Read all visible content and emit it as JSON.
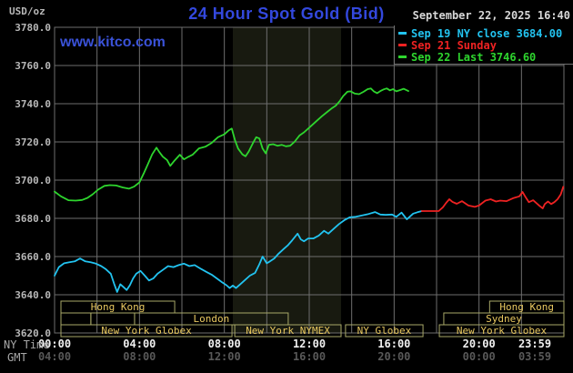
{
  "header": {
    "unit_label": "USD/oz",
    "title": "24 Hour Spot Gold (Bid)",
    "datetime": "September 22, 2025 16:40",
    "watermark": "www.kitco.com"
  },
  "colors": {
    "background": "#000000",
    "title_blue": "#3348dd",
    "grid": "#6e6e6e",
    "nymex_band": "#181a10",
    "session_border": "#a8a868",
    "session_text": "#e8c860",
    "sep19": "#22c3f0",
    "sep21": "#ee2222",
    "sep22": "#2ed52e"
  },
  "legend": {
    "items": [
      {
        "label": "Sep 19 NY close 3684.00",
        "color": "#22c3f0"
      },
      {
        "label": "Sep 21 Sunday",
        "color": "#ee2222"
      },
      {
        "label": "Sep 22 Last 3746.60",
        "color": "#2ed52e"
      }
    ]
  },
  "x_axis": {
    "row1_label": "NY Time",
    "row2_label": "GMT",
    "ticks": [
      {
        "h": 0,
        "ny": "00:00",
        "gmt": "04:00"
      },
      {
        "h": 4,
        "ny": "04:00",
        "gmt": "08:00"
      },
      {
        "h": 8,
        "ny": "08:00",
        "gmt": "12:00"
      },
      {
        "h": 12,
        "ny": "12:00",
        "gmt": "16:00"
      },
      {
        "h": 16,
        "ny": "16:00",
        "gmt": "20:00"
      },
      {
        "h": 20,
        "ny": "20:00",
        "gmt": "00:00"
      },
      {
        "h": 23.983,
        "ny": "23:59",
        "gmt": "03:59",
        "align_x": 588
      }
    ],
    "grid_hours": [
      2,
      4,
      6,
      8,
      10,
      12,
      14,
      16,
      18,
      20,
      22
    ]
  },
  "y_axis": {
    "min": 3620,
    "max": 3780,
    "step": 20,
    "tick_values": [
      3780,
      3760,
      3740,
      3720,
      3700,
      3680,
      3660,
      3640,
      3620
    ],
    "tick_labels": [
      "3780.0",
      "3760.0",
      "3740.0",
      "3720.0",
      "3700.0",
      "3680.0",
      "3660.0",
      "3640.0",
      "3620.0"
    ]
  },
  "sessions": {
    "rows": [
      {
        "row": 1,
        "boxes": [
          {
            "x1h": 0.3,
            "x2h": 5.66,
            "label": "Hong Kong"
          },
          {
            "x1h": 20.5,
            "x2h": 24.0,
            "label": "Hong Kong"
          }
        ]
      },
      {
        "row": 2,
        "boxes": [
          {
            "x1h": 0.3,
            "x2h": 1.71,
            "label": ""
          },
          {
            "x1h": 1.71,
            "x2h": 3.77,
            "label": ""
          },
          {
            "x1h": 3.77,
            "x2h": 11.01,
            "label": "London"
          },
          {
            "x1h": 18.34,
            "x2h": 24.0,
            "label": "Sydney"
          }
        ]
      },
      {
        "row": 3,
        "boxes": [
          {
            "x1h": 0.3,
            "x2h": 8.36,
            "label": "New York Globex"
          },
          {
            "x1h": 8.49,
            "x2h": 13.5,
            "label": "New York NYMEX"
          },
          {
            "x1h": 13.71,
            "x2h": 17.36,
            "label": "NY Globex"
          },
          {
            "x1h": 18.13,
            "x2h": 24.0,
            "label": "New York Globex"
          }
        ]
      }
    ]
  },
  "chart_data": {
    "type": "line",
    "title": "24 Hour Spot Gold (Bid)",
    "xlabel": "NY Time (hours)",
    "ylabel": "USD/oz",
    "xlim": [
      0,
      24
    ],
    "ylim": [
      3620,
      3780
    ],
    "grid": true,
    "legend_position": "top-right",
    "highlight_band_hours": [
      8.4,
      13.5
    ],
    "series": [
      {
        "name": "Sep 19 NY close 3684.00",
        "color": "#22c3f0",
        "points": [
          [
            0.0,
            3650
          ],
          [
            0.2,
            3654.5
          ],
          [
            0.45,
            3656.5
          ],
          [
            0.7,
            3657
          ],
          [
            0.95,
            3657.5
          ],
          [
            1.2,
            3659
          ],
          [
            1.45,
            3657.5
          ],
          [
            1.7,
            3657
          ],
          [
            1.95,
            3656.3
          ],
          [
            2.2,
            3655
          ],
          [
            2.4,
            3653.5
          ],
          [
            2.65,
            3651
          ],
          [
            2.8,
            3646
          ],
          [
            2.95,
            3641.5
          ],
          [
            3.1,
            3645.5
          ],
          [
            3.25,
            3644
          ],
          [
            3.4,
            3642.5
          ],
          [
            3.55,
            3645
          ],
          [
            3.7,
            3648.5
          ],
          [
            3.85,
            3651
          ],
          [
            4.05,
            3652.5
          ],
          [
            4.25,
            3650
          ],
          [
            4.45,
            3647.5
          ],
          [
            4.65,
            3648.5
          ],
          [
            4.85,
            3651
          ],
          [
            5.1,
            3653
          ],
          [
            5.35,
            3655
          ],
          [
            5.6,
            3654.5
          ],
          [
            5.85,
            3655.5
          ],
          [
            6.1,
            3656.3
          ],
          [
            6.35,
            3655
          ],
          [
            6.6,
            3655.5
          ],
          [
            6.9,
            3653.5
          ],
          [
            7.15,
            3652
          ],
          [
            7.4,
            3650.5
          ],
          [
            7.65,
            3648.5
          ],
          [
            7.9,
            3646.5
          ],
          [
            8.1,
            3645
          ],
          [
            8.25,
            3643.5
          ],
          [
            8.4,
            3644.8
          ],
          [
            8.55,
            3643.5
          ],
          [
            8.75,
            3645.5
          ],
          [
            8.95,
            3647.5
          ],
          [
            9.2,
            3650
          ],
          [
            9.45,
            3651.5
          ],
          [
            9.65,
            3656
          ],
          [
            9.8,
            3660
          ],
          [
            10.0,
            3656.5
          ],
          [
            10.15,
            3657.5
          ],
          [
            10.35,
            3659
          ],
          [
            10.55,
            3661.5
          ],
          [
            10.8,
            3664
          ],
          [
            11.0,
            3666
          ],
          [
            11.2,
            3668.5
          ],
          [
            11.45,
            3672
          ],
          [
            11.6,
            3669
          ],
          [
            11.75,
            3668
          ],
          [
            11.95,
            3669.5
          ],
          [
            12.2,
            3669.5
          ],
          [
            12.45,
            3671
          ],
          [
            12.7,
            3673.5
          ],
          [
            12.9,
            3672
          ],
          [
            13.15,
            3674.5
          ],
          [
            13.4,
            3677
          ],
          [
            13.65,
            3679
          ],
          [
            13.9,
            3680.5
          ],
          [
            14.2,
            3680.8
          ],
          [
            14.5,
            3681.5
          ],
          [
            14.8,
            3682.3
          ],
          [
            15.1,
            3683.3
          ],
          [
            15.35,
            3682
          ],
          [
            15.6,
            3681.8
          ],
          [
            15.9,
            3682
          ],
          [
            16.1,
            3680.8
          ],
          [
            16.35,
            3683
          ],
          [
            16.6,
            3679.5
          ],
          [
            16.9,
            3682.5
          ],
          [
            17.1,
            3683.2
          ],
          [
            17.3,
            3683.8
          ]
        ]
      },
      {
        "name": "Sep 21 Sunday",
        "color": "#ee2222",
        "points": [
          [
            17.3,
            3683.8
          ],
          [
            18.1,
            3683.8
          ],
          [
            18.3,
            3685.8
          ],
          [
            18.45,
            3688.1
          ],
          [
            18.6,
            3690
          ],
          [
            18.75,
            3688.6
          ],
          [
            18.95,
            3687.6
          ],
          [
            19.2,
            3689
          ],
          [
            19.5,
            3686.7
          ],
          [
            19.8,
            3686
          ],
          [
            20.0,
            3686.7
          ],
          [
            20.3,
            3689.3
          ],
          [
            20.55,
            3690
          ],
          [
            20.8,
            3688.8
          ],
          [
            21.0,
            3689.3
          ],
          [
            21.3,
            3689
          ],
          [
            21.6,
            3690.5
          ],
          [
            21.9,
            3691.5
          ],
          [
            22.05,
            3693.8
          ],
          [
            22.2,
            3691
          ],
          [
            22.35,
            3688.5
          ],
          [
            22.55,
            3689.5
          ],
          [
            22.7,
            3688
          ],
          [
            22.85,
            3686.5
          ],
          [
            23.0,
            3685.2
          ],
          [
            23.1,
            3687.5
          ],
          [
            23.25,
            3688.8
          ],
          [
            23.4,
            3687.5
          ],
          [
            23.55,
            3688.5
          ],
          [
            23.7,
            3690
          ],
          [
            23.85,
            3692.5
          ],
          [
            23.97,
            3696.5
          ]
        ]
      },
      {
        "name": "Sep 22 Last 3746.60",
        "color": "#2ed52e",
        "points": [
          [
            0.0,
            3694
          ],
          [
            0.3,
            3691.5
          ],
          [
            0.65,
            3689.5
          ],
          [
            1.0,
            3689.3
          ],
          [
            1.3,
            3689.6
          ],
          [
            1.55,
            3690.7
          ],
          [
            1.8,
            3692.6
          ],
          [
            2.05,
            3695
          ],
          [
            2.35,
            3697
          ],
          [
            2.6,
            3697.4
          ],
          [
            2.9,
            3697.2
          ],
          [
            3.2,
            3696.2
          ],
          [
            3.5,
            3695.5
          ],
          [
            3.75,
            3696.6
          ],
          [
            4.0,
            3698.8
          ],
          [
            4.2,
            3703.5
          ],
          [
            4.4,
            3708.5
          ],
          [
            4.6,
            3713.5
          ],
          [
            4.8,
            3717
          ],
          [
            4.95,
            3714.5
          ],
          [
            5.1,
            3712.3
          ],
          [
            5.3,
            3710.5
          ],
          [
            5.45,
            3707.5
          ],
          [
            5.65,
            3710.2
          ],
          [
            5.9,
            3713.3
          ],
          [
            6.1,
            3710.9
          ],
          [
            6.3,
            3712.2
          ],
          [
            6.5,
            3713.3
          ],
          [
            6.8,
            3716.6
          ],
          [
            7.1,
            3717.5
          ],
          [
            7.4,
            3719.5
          ],
          [
            7.7,
            3722.5
          ],
          [
            8.0,
            3724
          ],
          [
            8.2,
            3726
          ],
          [
            8.35,
            3727
          ],
          [
            8.5,
            3721
          ],
          [
            8.65,
            3716.5
          ],
          [
            8.85,
            3713.5
          ],
          [
            9.0,
            3712.5
          ],
          [
            9.15,
            3715
          ],
          [
            9.35,
            3719.5
          ],
          [
            9.5,
            3722.5
          ],
          [
            9.65,
            3721.8
          ],
          [
            9.8,
            3716.5
          ],
          [
            9.95,
            3714
          ],
          [
            10.1,
            3718.5
          ],
          [
            10.3,
            3718.8
          ],
          [
            10.5,
            3718
          ],
          [
            10.7,
            3718.5
          ],
          [
            10.9,
            3717.7
          ],
          [
            11.1,
            3718
          ],
          [
            11.3,
            3720
          ],
          [
            11.55,
            3723.5
          ],
          [
            11.75,
            3725
          ],
          [
            12.0,
            3727.5
          ],
          [
            12.3,
            3730.5
          ],
          [
            12.6,
            3733.5
          ],
          [
            12.85,
            3735.7
          ],
          [
            13.05,
            3737.5
          ],
          [
            13.25,
            3739
          ],
          [
            13.45,
            3741.5
          ],
          [
            13.6,
            3744
          ],
          [
            13.8,
            3746.3
          ],
          [
            13.95,
            3746.5
          ],
          [
            14.15,
            3745.3
          ],
          [
            14.35,
            3745
          ],
          [
            14.55,
            3746.2
          ],
          [
            14.75,
            3747.6
          ],
          [
            14.9,
            3748
          ],
          [
            15.05,
            3746.4
          ],
          [
            15.2,
            3745.5
          ],
          [
            15.35,
            3746.6
          ],
          [
            15.5,
            3747.5
          ],
          [
            15.65,
            3748
          ],
          [
            15.8,
            3747
          ],
          [
            15.95,
            3747.6
          ],
          [
            16.1,
            3746.5
          ],
          [
            16.3,
            3747.2
          ],
          [
            16.45,
            3747.8
          ],
          [
            16.67,
            3746.6
          ]
        ]
      }
    ]
  }
}
